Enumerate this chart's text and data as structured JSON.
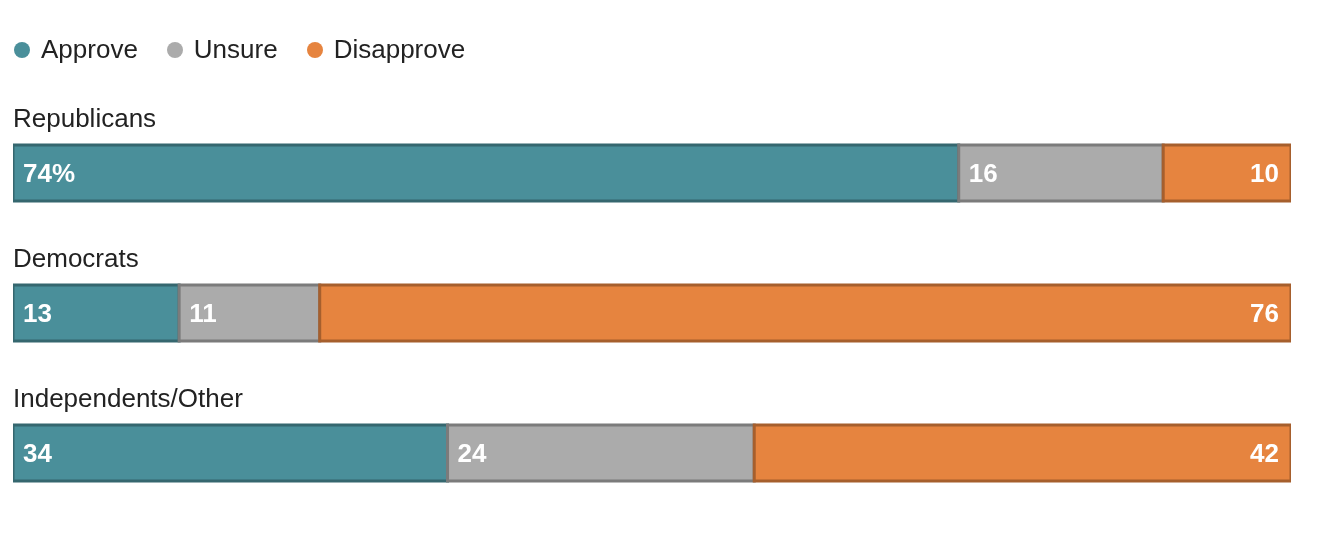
{
  "chart_data": {
    "type": "bar",
    "orientation": "horizontal",
    "stacked": true,
    "categories": [
      "Republicans",
      "Democrats",
      "Independents/Other"
    ],
    "series": [
      {
        "name": "Approve",
        "color": "#4a8f9a",
        "values": [
          74,
          13,
          34
        ],
        "value_labels": [
          "74%",
          "13",
          "34"
        ]
      },
      {
        "name": "Unsure",
        "color": "#ababab",
        "values": [
          16,
          11,
          24
        ],
        "value_labels": [
          "16",
          "11",
          "24"
        ]
      },
      {
        "name": "Disapprove",
        "color": "#e6843f",
        "values": [
          10,
          76,
          42
        ],
        "value_labels": [
          "10",
          "76",
          "42"
        ]
      }
    ],
    "xlim": [
      0,
      100
    ],
    "grid": false,
    "legend": "top left"
  }
}
